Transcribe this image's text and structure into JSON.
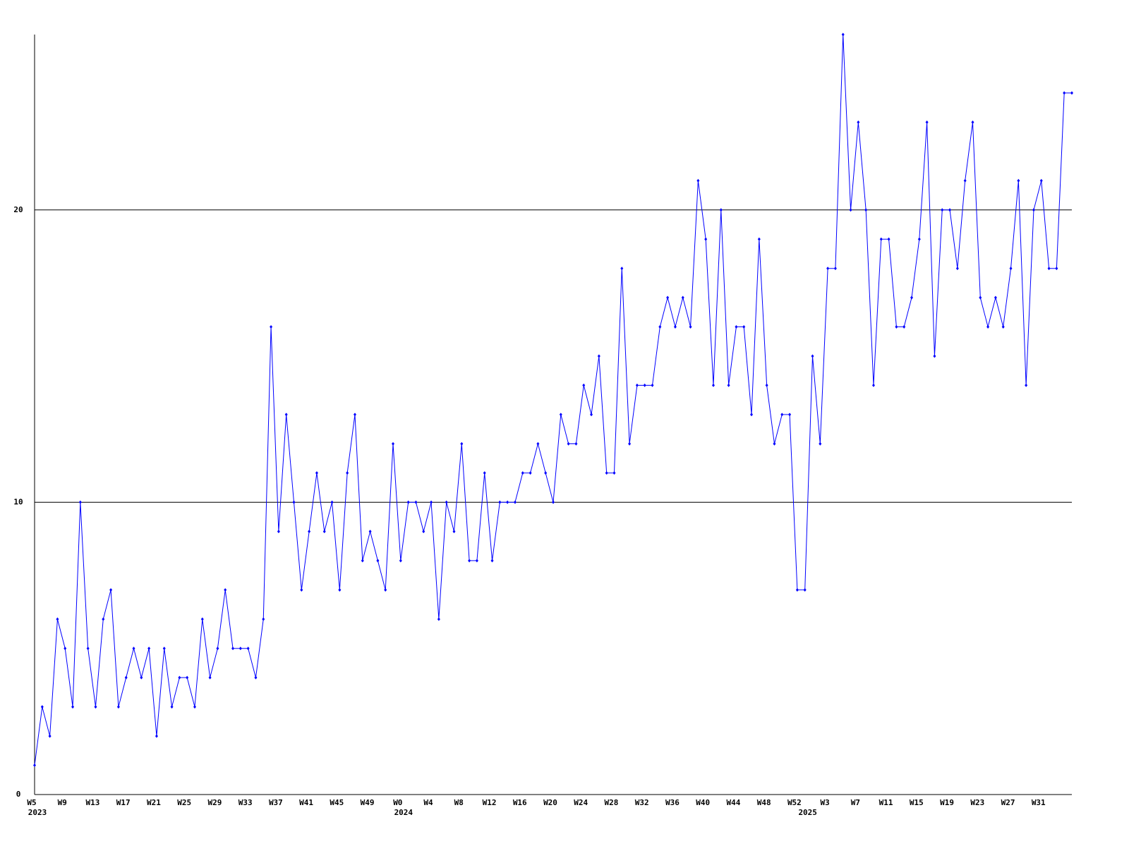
{
  "chart_data": {
    "type": "line",
    "color": "#0000ff",
    "grid": true,
    "ylim": [
      0,
      26
    ],
    "yticks": [
      0,
      10,
      20
    ],
    "categories": [
      "W5",
      null,
      null,
      null,
      "W9",
      null,
      null,
      null,
      "W13",
      null,
      null,
      null,
      "W17",
      null,
      null,
      null,
      "W21",
      null,
      null,
      null,
      "W25",
      null,
      null,
      null,
      "W29",
      null,
      null,
      null,
      "W33",
      null,
      null,
      null,
      "W37",
      null,
      null,
      null,
      "W41",
      null,
      null,
      null,
      "W45",
      null,
      null,
      null,
      "W49",
      null,
      null,
      null,
      "W0",
      null,
      null,
      null,
      "W4",
      null,
      null,
      null,
      "W8",
      null,
      null,
      null,
      "W12",
      null,
      null,
      null,
      "W16",
      null,
      null,
      null,
      "W20",
      null,
      null,
      null,
      "W24",
      null,
      null,
      null,
      "W28",
      null,
      null,
      null,
      "W32",
      null,
      null,
      null,
      "W36",
      null,
      null,
      null,
      "W40",
      null,
      null,
      null,
      "W44",
      null,
      null,
      null,
      "W48",
      null,
      null,
      null,
      "W52",
      null,
      null,
      null,
      "W3",
      null,
      null,
      null,
      "W7",
      null,
      null,
      null,
      "W11",
      null,
      null,
      null,
      "W15",
      null,
      null,
      null,
      "W19",
      null,
      null,
      null,
      "W23",
      null,
      null,
      null,
      "W27",
      null,
      null,
      null,
      "W31",
      null,
      null,
      null,
      null
    ],
    "category_years": [
      "2023",
      null,
      null,
      null,
      null,
      null,
      null,
      null,
      null,
      null,
      null,
      null,
      null,
      null,
      null,
      null,
      null,
      null,
      null,
      null,
      null,
      null,
      null,
      null,
      null,
      null,
      null,
      null,
      null,
      null,
      null,
      null,
      null,
      null,
      null,
      null,
      null,
      null,
      null,
      null,
      null,
      null,
      null,
      null,
      null,
      null,
      null,
      null,
      "2024",
      null,
      null,
      null,
      null,
      null,
      null,
      null,
      null,
      null,
      null,
      null,
      null,
      null,
      null,
      null,
      null,
      null,
      null,
      null,
      null,
      null,
      null,
      null,
      null,
      null,
      null,
      null,
      null,
      null,
      null,
      null,
      null,
      null,
      null,
      null,
      null,
      null,
      null,
      null,
      null,
      null,
      null,
      null,
      null,
      null,
      null,
      null,
      null,
      null,
      null,
      null,
      null,
      "2025",
      null,
      null,
      null,
      null,
      null,
      null,
      null,
      null,
      null,
      null,
      null,
      null,
      null,
      null,
      null,
      null,
      null,
      null,
      null,
      null,
      null,
      null,
      null,
      null,
      null,
      null,
      null,
      null,
      null,
      null,
      null,
      null,
      null,
      null,
      null
    ],
    "values": [
      1,
      3,
      2,
      6,
      5,
      3,
      10,
      5,
      3,
      6,
      7,
      3,
      4,
      5,
      4,
      5,
      2,
      5,
      3,
      4,
      4,
      3,
      6,
      4,
      5,
      7,
      5,
      5,
      5,
      4,
      6,
      16,
      9,
      13,
      10,
      7,
      9,
      11,
      9,
      10,
      7,
      11,
      13,
      8,
      9,
      8,
      7,
      12,
      8,
      10,
      10,
      9,
      10,
      6,
      10,
      9,
      12,
      8,
      8,
      11,
      8,
      10,
      10,
      10,
      11,
      11,
      12,
      11,
      10,
      13,
      12,
      12,
      14,
      13,
      15,
      11,
      11,
      18,
      12,
      14,
      14,
      14,
      16,
      17,
      16,
      17,
      16,
      21,
      19,
      14,
      20,
      14,
      16,
      16,
      13,
      19,
      14,
      12,
      13,
      13,
      7,
      7,
      15,
      12,
      18,
      18,
      26,
      20,
      23,
      20,
      14,
      19,
      19,
      16,
      16,
      17,
      19,
      23,
      15,
      20,
      20,
      18,
      21,
      23,
      17,
      16,
      17,
      16,
      18,
      21,
      14,
      20,
      21,
      18,
      18,
      24,
      24
    ]
  }
}
